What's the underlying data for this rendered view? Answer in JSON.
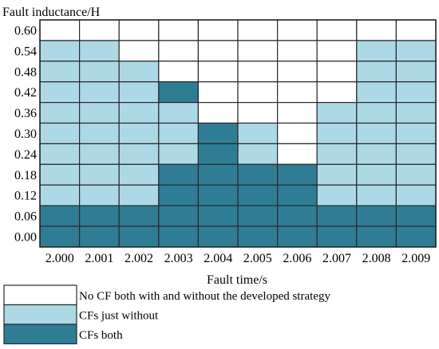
{
  "chart_data": {
    "type": "heatmap",
    "ylabel": "Fault inductance/H",
    "xlabel": "Fault time/s",
    "x_categories": [
      "2.000",
      "2.001",
      "2.002",
      "2.003",
      "2.004",
      "2.005",
      "2.006",
      "2.007",
      "2.008",
      "2.009"
    ],
    "y_categories_top_to_bottom": [
      "0.60",
      "0.54",
      "0.48",
      "0.42",
      "0.36",
      "0.30",
      "0.24",
      "0.18",
      "0.12",
      "0.06",
      "0.00"
    ],
    "legend": [
      {
        "code": 0,
        "label": "No CF both with and without the developed strategy",
        "color": "#ffffff"
      },
      {
        "code": 1,
        "label": "CFs just without",
        "color": "#add8e6"
      },
      {
        "code": 2,
        "label": "CFs both",
        "color": "#2e7d95"
      }
    ],
    "grid_top_to_bottom": [
      [
        0,
        0,
        0,
        0,
        0,
        0,
        0,
        0,
        0,
        0
      ],
      [
        1,
        1,
        0,
        0,
        0,
        0,
        0,
        0,
        1,
        1
      ],
      [
        1,
        1,
        1,
        0,
        0,
        0,
        0,
        0,
        1,
        1
      ],
      [
        1,
        1,
        1,
        2,
        0,
        0,
        0,
        0,
        1,
        1
      ],
      [
        1,
        1,
        1,
        1,
        0,
        0,
        0,
        1,
        1,
        1
      ],
      [
        1,
        1,
        1,
        1,
        2,
        1,
        0,
        1,
        1,
        1
      ],
      [
        1,
        1,
        1,
        1,
        2,
        1,
        0,
        1,
        1,
        1
      ],
      [
        1,
        1,
        1,
        2,
        2,
        2,
        2,
        1,
        1,
        1
      ],
      [
        1,
        1,
        1,
        2,
        2,
        2,
        2,
        1,
        1,
        1
      ],
      [
        2,
        2,
        2,
        2,
        2,
        2,
        2,
        2,
        2,
        2
      ],
      [
        2,
        2,
        2,
        2,
        2,
        2,
        2,
        2,
        2,
        2
      ]
    ]
  }
}
